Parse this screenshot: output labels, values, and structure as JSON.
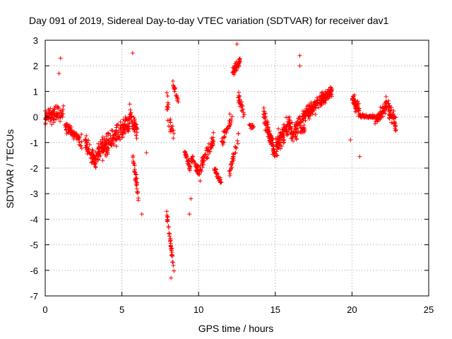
{
  "chart_data": {
    "type": "scatter",
    "title": "Day 091 of 2019, Sidereal Day-to-day VTEC variation (SDTVAR) for receiver dav1",
    "xlabel": "GPS time / hours",
    "ylabel": "SDTVAR / TECUs",
    "xlim": [
      0,
      25
    ],
    "ylim": [
      -7,
      3
    ],
    "xticks": [
      0,
      5,
      10,
      15,
      20,
      25
    ],
    "yticks": [
      -7,
      -6,
      -5,
      -4,
      -3,
      -2,
      -1,
      0,
      1,
      2,
      3
    ],
    "x_tick_labels": [
      "0",
      "5",
      "10",
      "15",
      "20",
      "25"
    ],
    "y_tick_labels": [
      "-7",
      "-6",
      "-5",
      "-4",
      "-3",
      "-2",
      "-1",
      "0",
      "1",
      "2",
      "3"
    ],
    "grid": true,
    "marker": "+",
    "marker_color": "#ff0000",
    "segments": [
      {
        "start": 0.0,
        "end": 1.2,
        "base_start": 0.0,
        "base_end": 0.2,
        "spread": 0.35,
        "n": 90
      },
      {
        "start": 1.2,
        "end": 2.4,
        "base_start": -0.3,
        "base_end": -1.0,
        "spread": 0.3,
        "n": 70
      },
      {
        "start": 2.6,
        "end": 3.3,
        "base_start": -1.0,
        "base_end": -1.8,
        "spread": 0.45,
        "n": 60
      },
      {
        "start": 3.3,
        "end": 4.5,
        "base_start": -1.5,
        "base_end": -0.8,
        "spread": 0.5,
        "n": 110
      },
      {
        "start": 4.5,
        "end": 5.5,
        "base_start": -0.8,
        "base_end": -0.2,
        "spread": 0.45,
        "n": 90
      },
      {
        "start": 5.5,
        "end": 6.0,
        "base_start": 0.2,
        "base_end": -0.6,
        "spread": 0.5,
        "n": 50
      },
      {
        "start": 5.7,
        "end": 6.1,
        "base_start": -1.5,
        "base_end": -3.2,
        "spread": 0.35,
        "n": 30
      },
      {
        "start": 7.9,
        "end": 8.4,
        "base_start": 0.8,
        "base_end": -1.0,
        "spread": 0.6,
        "n": 25
      },
      {
        "start": 7.9,
        "end": 8.4,
        "base_start": -3.7,
        "base_end": -6.0,
        "spread": 0.25,
        "n": 35
      },
      {
        "start": 8.3,
        "end": 8.7,
        "base_start": 1.3,
        "base_end": 0.6,
        "spread": 0.2,
        "n": 18
      },
      {
        "start": 9.0,
        "end": 9.5,
        "base_start": -1.2,
        "base_end": -2.1,
        "spread": 0.2,
        "n": 30
      },
      {
        "start": 9.5,
        "end": 10.2,
        "base_start": -1.7,
        "base_end": -2.2,
        "spread": 0.3,
        "n": 40
      },
      {
        "start": 10.2,
        "end": 11.0,
        "base_start": -1.8,
        "base_end": -0.9,
        "spread": 0.3,
        "n": 50
      },
      {
        "start": 11.0,
        "end": 11.5,
        "base_start": -2.0,
        "base_end": -2.6,
        "spread": 0.2,
        "n": 30
      },
      {
        "start": 11.5,
        "end": 12.2,
        "base_start": -1.0,
        "base_end": 0.0,
        "spread": 0.35,
        "n": 35
      },
      {
        "start": 12.0,
        "end": 12.6,
        "base_start": -2.2,
        "base_end": -0.8,
        "spread": 0.3,
        "n": 30
      },
      {
        "start": 12.2,
        "end": 12.7,
        "base_start": 1.7,
        "base_end": 2.2,
        "spread": 0.2,
        "n": 45
      },
      {
        "start": 12.6,
        "end": 13.0,
        "base_start": 0.8,
        "base_end": 0.0,
        "spread": 0.3,
        "n": 25
      },
      {
        "start": 13.3,
        "end": 13.6,
        "base_start": -0.3,
        "base_end": -0.4,
        "spread": 0.1,
        "n": 12
      },
      {
        "start": 14.2,
        "end": 15.0,
        "base_start": 0.2,
        "base_end": -1.5,
        "spread": 0.4,
        "n": 90
      },
      {
        "start": 15.0,
        "end": 16.0,
        "base_start": -1.2,
        "base_end": -0.2,
        "spread": 0.5,
        "n": 110
      },
      {
        "start": 16.0,
        "end": 17.0,
        "base_start": -0.6,
        "base_end": -0.3,
        "spread": 0.45,
        "n": 80
      },
      {
        "start": 16.8,
        "end": 17.9,
        "base_start": 0.0,
        "base_end": 0.6,
        "spread": 0.35,
        "n": 100
      },
      {
        "start": 17.9,
        "end": 18.7,
        "base_start": 0.6,
        "base_end": 1.0,
        "spread": 0.3,
        "n": 80
      },
      {
        "start": 20.0,
        "end": 20.5,
        "base_start": 0.8,
        "base_end": 0.1,
        "spread": 0.3,
        "n": 50
      },
      {
        "start": 20.5,
        "end": 21.5,
        "base_start": 0.05,
        "base_end": 0.0,
        "spread": 0.08,
        "n": 70
      },
      {
        "start": 21.5,
        "end": 22.2,
        "base_start": -0.2,
        "base_end": 0.4,
        "spread": 0.3,
        "n": 60
      },
      {
        "start": 22.2,
        "end": 22.9,
        "base_start": 0.6,
        "base_end": -0.4,
        "spread": 0.35,
        "n": 60
      }
    ],
    "outliers": [
      {
        "x": 1.0,
        "y": 2.3
      },
      {
        "x": 5.7,
        "y": 2.5
      },
      {
        "x": 12.5,
        "y": 2.85
      },
      {
        "x": 16.6,
        "y": 2.4
      },
      {
        "x": 6.6,
        "y": -1.4
      },
      {
        "x": 6.3,
        "y": -3.8
      },
      {
        "x": 8.2,
        "y": -6.3
      },
      {
        "x": 9.5,
        "y": -3.2
      },
      {
        "x": 20.5,
        "y": -1.55
      },
      {
        "x": 19.9,
        "y": -0.9
      },
      {
        "x": 16.6,
        "y": 2.0
      },
      {
        "x": 0.9,
        "y": 1.7
      },
      {
        "x": 9.4,
        "y": -3.8
      },
      {
        "x": 10.1,
        "y": -2.5
      },
      {
        "x": 13.4,
        "y": -0.45
      }
    ]
  }
}
